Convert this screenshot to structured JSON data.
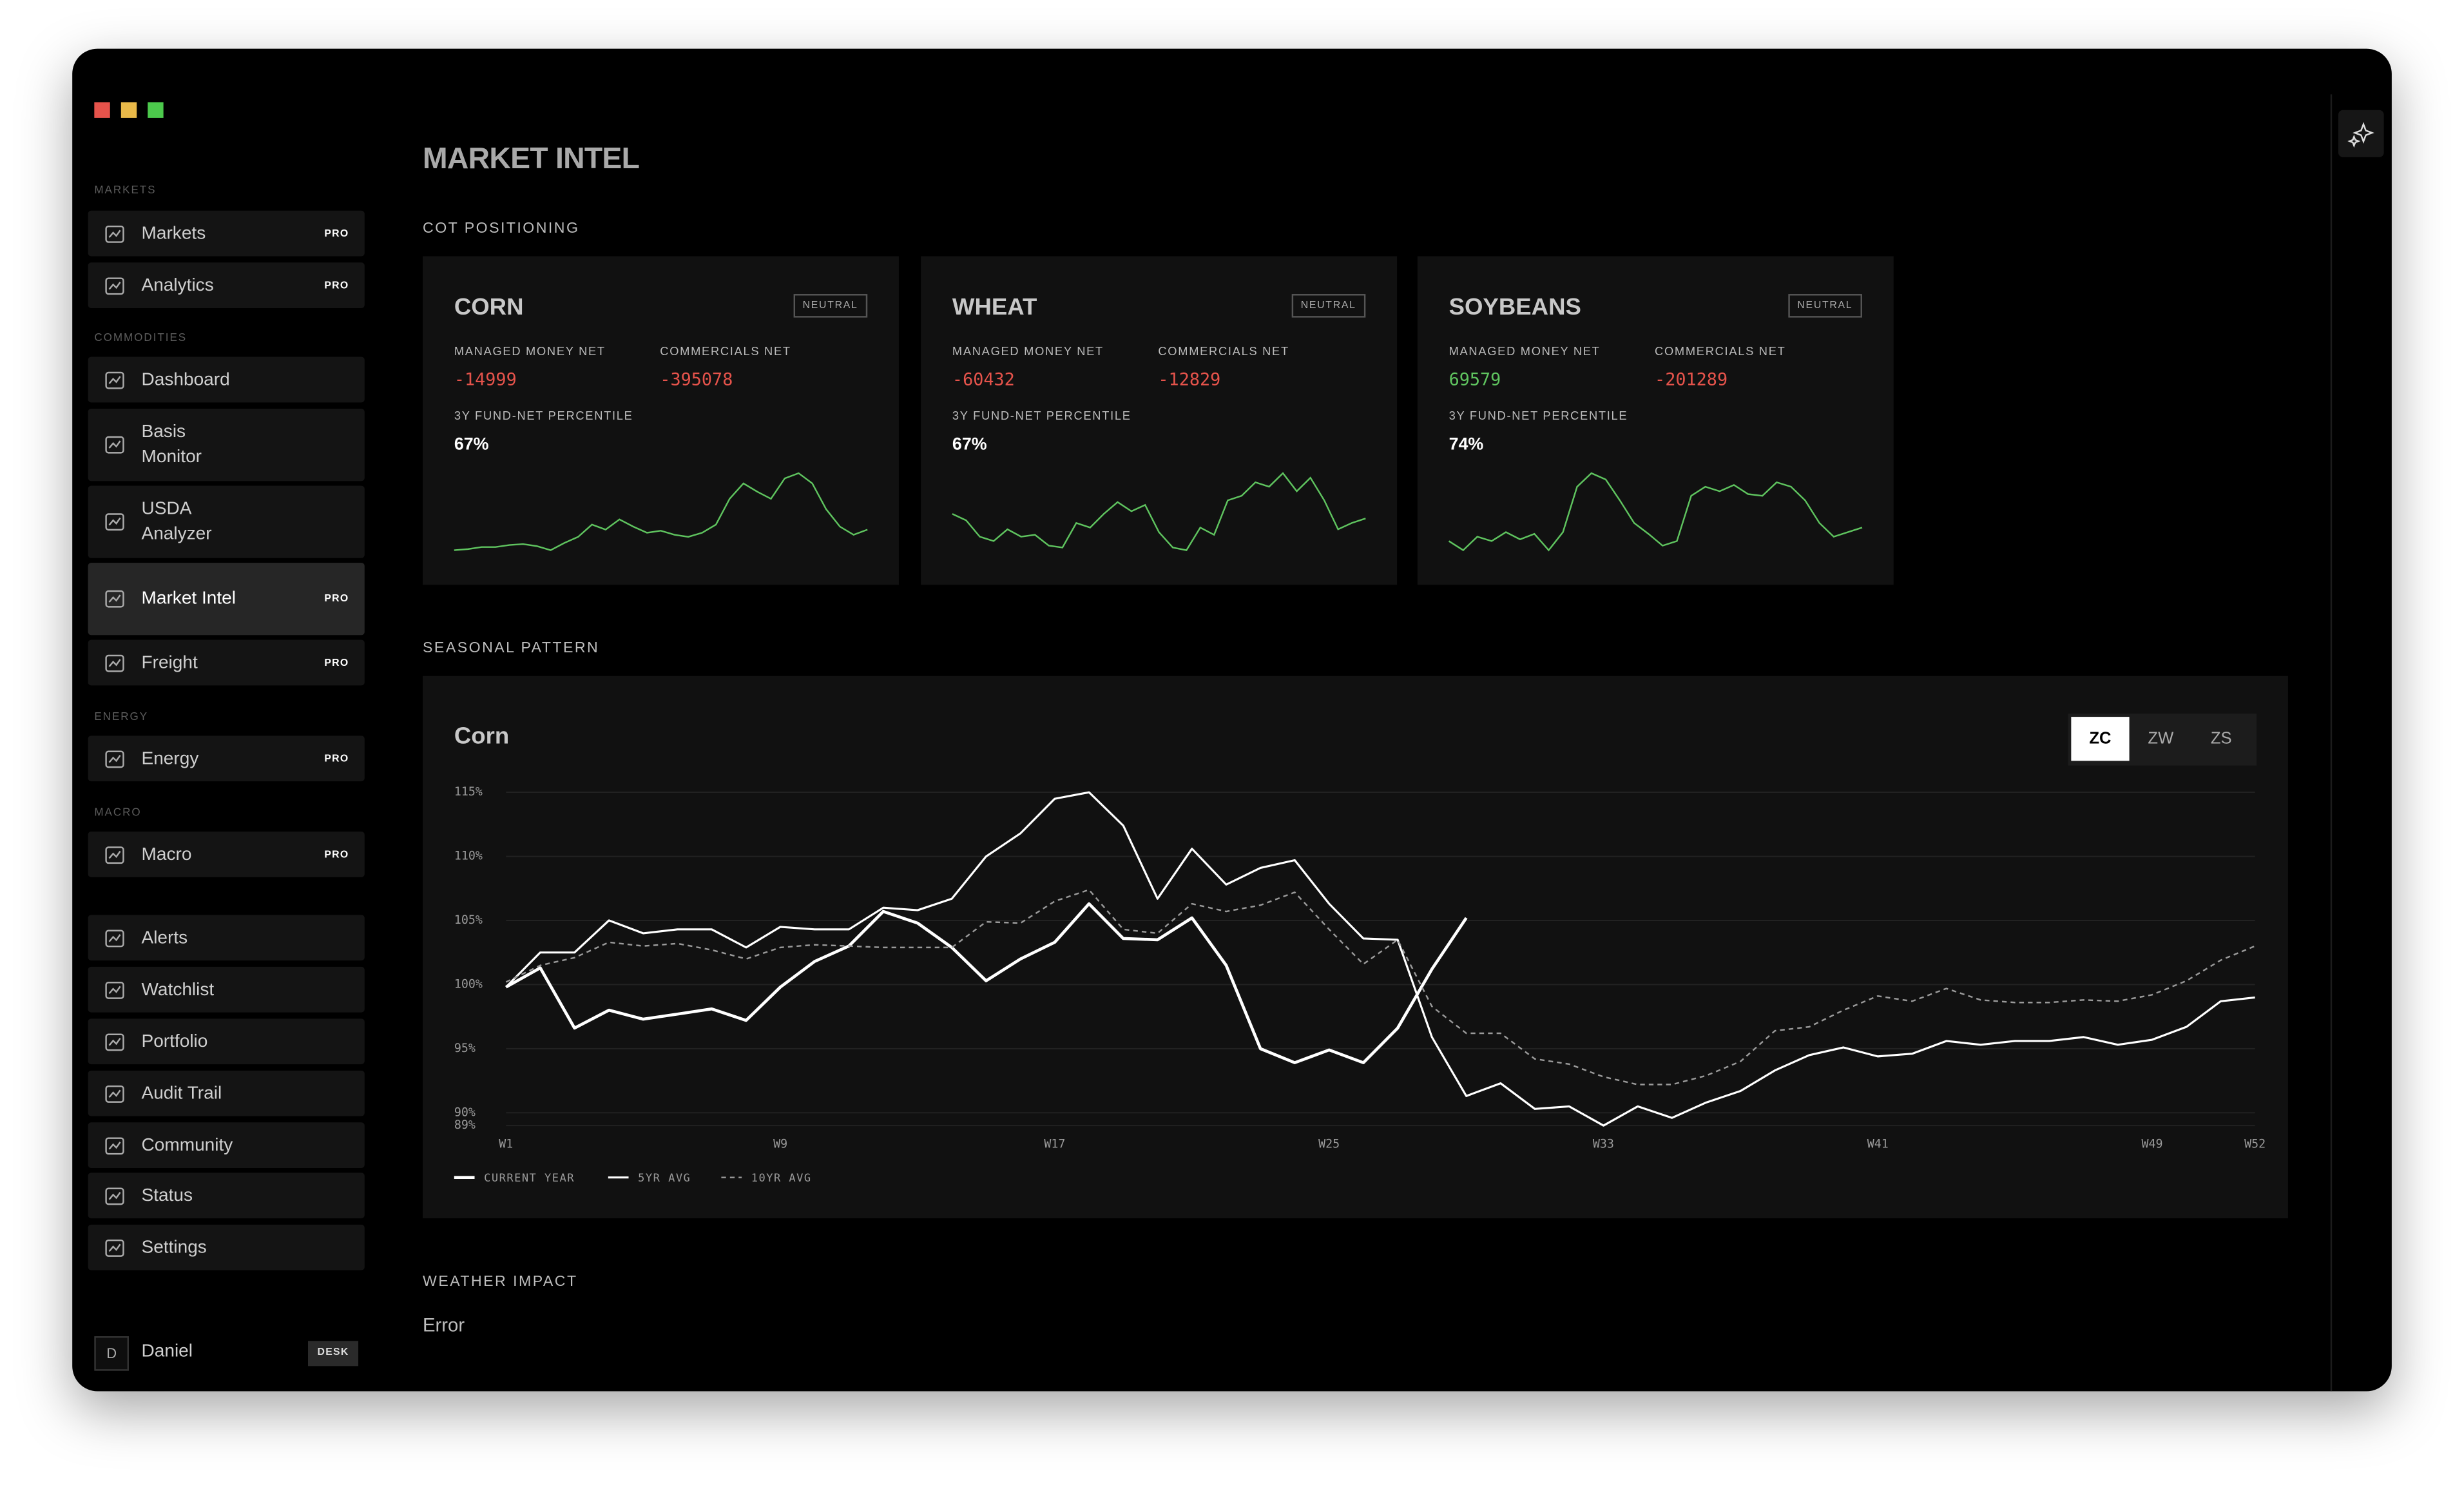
{
  "sidebar": {
    "sections": [
      {
        "label": "MARKETS",
        "items": [
          {
            "label": "Markets",
            "badge": "PRO"
          },
          {
            "label": "Analytics",
            "badge": "PRO"
          }
        ]
      },
      {
        "label": "COMMODITIES",
        "items": [
          {
            "label": "Dashboard"
          },
          {
            "label": "Basis Monitor"
          },
          {
            "label": "USDA Analyzer"
          },
          {
            "label": "Market Intel",
            "badge": "PRO",
            "active": true
          },
          {
            "label": "Freight",
            "badge": "PRO"
          }
        ]
      },
      {
        "label": "ENERGY",
        "items": [
          {
            "label": "Energy",
            "badge": "PRO"
          }
        ]
      },
      {
        "label": "MACRO",
        "items": [
          {
            "label": "Macro",
            "badge": "PRO"
          }
        ]
      },
      {
        "items": [
          {
            "label": "Alerts"
          },
          {
            "label": "Watchlist"
          },
          {
            "label": "Portfolio"
          },
          {
            "label": "Audit Trail"
          },
          {
            "label": "Community"
          },
          {
            "label": "Status"
          },
          {
            "label": "Settings"
          }
        ]
      }
    ],
    "user": {
      "initial": "D",
      "name": "Daniel",
      "badge": "DESK"
    }
  },
  "page": {
    "title": "MARKET INTEL",
    "cot": {
      "label": "COT POSITIONING",
      "cards": [
        {
          "name": "CORN",
          "badge": "NEUTRAL",
          "metrics": [
            {
              "label": "MANAGED MONEY NET",
              "value": -14999
            },
            {
              "label": "COMMERCIALS NET",
              "value": -395078
            }
          ],
          "percentile_label": "3Y FUND-NET PERCENTILE",
          "percentile": "67%",
          "sparkline": [
            5,
            6,
            8,
            8,
            10,
            11,
            9,
            5,
            12,
            18,
            30,
            25,
            35,
            28,
            22,
            24,
            20,
            18,
            22,
            30,
            55,
            70,
            62,
            55,
            75,
            80,
            70,
            45,
            28,
            20,
            25
          ]
        },
        {
          "name": "WHEAT",
          "badge": "NEUTRAL",
          "metrics": [
            {
              "label": "MANAGED MONEY NET",
              "value": -60432
            },
            {
              "label": "COMMERCIALS NET",
              "value": -12829
            }
          ],
          "percentile_label": "3Y FUND-NET PERCENTILE",
          "percentile": "67%",
          "sparkline": [
            45,
            38,
            20,
            15,
            28,
            20,
            22,
            10,
            8,
            35,
            30,
            45,
            58,
            48,
            55,
            25,
            8,
            5,
            30,
            22,
            60,
            65,
            80,
            75,
            90,
            70,
            85,
            60,
            28,
            35,
            40
          ]
        },
        {
          "name": "SOYBEANS",
          "badge": "NEUTRAL",
          "metrics": [
            {
              "label": "MANAGED MONEY NET",
              "value": 69579
            },
            {
              "label": "COMMERCIALS NET",
              "value": -201289
            }
          ],
          "percentile_label": "3Y FUND-NET PERCENTILE",
          "percentile": "74%",
          "sparkline": [
            20,
            10,
            25,
            20,
            30,
            22,
            28,
            10,
            30,
            80,
            95,
            88,
            65,
            40,
            28,
            15,
            20,
            70,
            80,
            75,
            82,
            72,
            70,
            85,
            80,
            65,
            40,
            25,
            30,
            35
          ]
        }
      ]
    },
    "seasonal": {
      "label": "SEASONAL PATTERN",
      "tabs": [
        "ZC",
        "ZW",
        "ZS"
      ],
      "active_tab": 0
    },
    "weather": {
      "label": "WEATHER IMPACT",
      "message": "Error"
    }
  },
  "chart_data": {
    "type": "line",
    "title": "Corn",
    "x": [
      1,
      2,
      3,
      4,
      5,
      6,
      7,
      8,
      9,
      10,
      11,
      12,
      13,
      14,
      15,
      16,
      17,
      18,
      19,
      20,
      21,
      22,
      23,
      24,
      25,
      26,
      27,
      28,
      29,
      30,
      31,
      32,
      33,
      34,
      35,
      36,
      37,
      38,
      39,
      40,
      41,
      42,
      43,
      44,
      45,
      46,
      47,
      48,
      49,
      50,
      51,
      52
    ],
    "xlim": [
      1,
      52
    ],
    "xticks": [
      {
        "value": 1,
        "label": "W1"
      },
      {
        "value": 9,
        "label": "W9"
      },
      {
        "value": 17,
        "label": "W17"
      },
      {
        "value": 25,
        "label": "W25"
      },
      {
        "value": 33,
        "label": "W33"
      },
      {
        "value": 41,
        "label": "W41"
      },
      {
        "value": 49,
        "label": "W49"
      },
      {
        "value": 52,
        "label": "W52"
      }
    ],
    "ylim": [
      89,
      115
    ],
    "yticks": [
      {
        "value": 89,
        "label": "89%"
      },
      {
        "value": 90,
        "label": "90%"
      },
      {
        "value": 95,
        "label": "95%"
      },
      {
        "value": 100,
        "label": "100%"
      },
      {
        "value": 105,
        "label": "105%"
      },
      {
        "value": 110,
        "label": "110%"
      },
      {
        "value": 115,
        "label": "115%"
      }
    ],
    "grid": true,
    "series": [
      {
        "name": "CURRENT YEAR",
        "color": "#ffffff",
        "style": "bold",
        "values": [
          99.8,
          101.3,
          96.6,
          98,
          97.3,
          97.7,
          98.1,
          97.2,
          99.8,
          101.8,
          103,
          105.7,
          104.8,
          102.9,
          100.3,
          102,
          103.3,
          106.3,
          103.6,
          103.5,
          105.2,
          101.5,
          95,
          93.9,
          94.9,
          93.9,
          96.6,
          101.2,
          105.2,
          null,
          null,
          null,
          null,
          null,
          null,
          null,
          null,
          null,
          null,
          null,
          null,
          null,
          null,
          null,
          null,
          null,
          null,
          null,
          null,
          null,
          null,
          null
        ]
      },
      {
        "name": "5YR AVG",
        "color": "#ffffff",
        "style": "solid",
        "values": [
          99.8,
          102.5,
          102.5,
          105,
          104,
          104.3,
          104.3,
          102.9,
          104.5,
          104.3,
          104.3,
          106,
          105.8,
          106.7,
          110,
          111.8,
          114.5,
          115,
          112.4,
          106.7,
          110.6,
          107.8,
          109.1,
          109.7,
          106.3,
          103.6,
          103.5,
          95.9,
          91.3,
          92.3,
          90.3,
          90.5,
          89,
          90.5,
          89.6,
          90.8,
          91.7,
          93.3,
          94.5,
          95.1,
          94.4,
          94.6,
          95.6,
          95.3,
          95.6,
          95.6,
          95.9,
          95.3,
          95.7,
          96.7,
          98.7,
          99
        ]
      },
      {
        "name": "10YR AVG",
        "color": "#9a9a9a",
        "style": "dashed",
        "values": [
          100.2,
          101.5,
          102.1,
          103.3,
          103,
          103.2,
          102.7,
          102,
          102.9,
          103.1,
          103,
          102.9,
          102.9,
          102.9,
          104.9,
          104.8,
          106.5,
          107.4,
          104.3,
          104,
          106.3,
          105.7,
          106.2,
          107.2,
          104.3,
          101.6,
          103.5,
          98.3,
          96.2,
          96.2,
          94.2,
          93.8,
          92.8,
          92.2,
          92.2,
          92.9,
          94,
          96.4,
          96.7,
          98,
          99.1,
          98.7,
          99.7,
          98.8,
          98.6,
          98.6,
          98.8,
          98.7,
          99.2,
          100.3,
          101.9,
          103
        ]
      }
    ]
  }
}
